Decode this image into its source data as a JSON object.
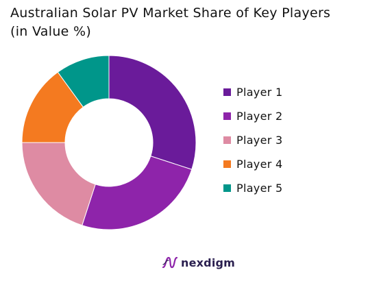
{
  "title_line1": "Australian Solar PV Market Share of Key Players",
  "title_line2": "(in Value %)",
  "brand": {
    "name": "nexdigm",
    "logo_icon": "nexdigm-wave-logo"
  },
  "colors": {
    "player1": "#6a1b9a",
    "player2": "#8e24aa",
    "player3": "#de8ba3",
    "player4": "#f47a20",
    "player5": "#00968a",
    "brand": "#2a1f4f"
  },
  "chart_data": {
    "type": "pie",
    "style": "donut",
    "title": "Australian Solar PV Market Share of Key Players (in Value %)",
    "legend_position": "right",
    "series": [
      {
        "name": "Player 1",
        "value": 30
      },
      {
        "name": "Player 2",
        "value": 25
      },
      {
        "name": "Player 3",
        "value": 20
      },
      {
        "name": "Player 4",
        "value": 15
      },
      {
        "name": "Player 5",
        "value": 10
      }
    ]
  }
}
